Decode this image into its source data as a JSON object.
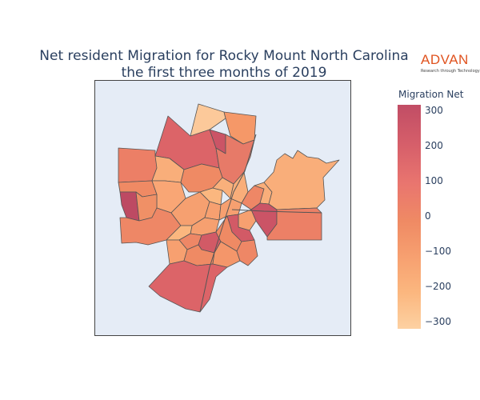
{
  "title": {
    "line1": "Net resident Migration for Rocky Mount North Carolina",
    "line2": "the first three months of 2019"
  },
  "logo": {
    "word": "ADVAN",
    "tagline": "Research through Technology",
    "color": "#e0531f"
  },
  "legend": {
    "title": "Migration Net",
    "ticks": [
      "300",
      "200",
      "100",
      "0",
      "−100",
      "−200",
      "−300"
    ],
    "range": [
      -320,
      320
    ]
  },
  "colors": {
    "background": "#e5ecf6",
    "border": "#555555",
    "scale_high": "#c14d65",
    "scale_mid": "#ef8a64",
    "scale_low": "#fdd1a2"
  }
}
